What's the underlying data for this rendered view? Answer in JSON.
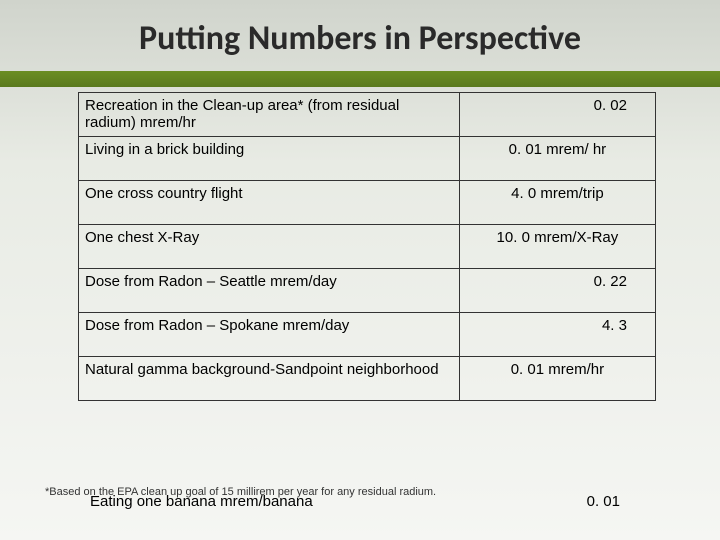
{
  "title": "Putting Numbers in Perspective",
  "table": {
    "rows": [
      {
        "label": "Recreation in the Clean-up area* (from residual radium) mrem/hr",
        "value": "0. 02",
        "align": "right"
      },
      {
        "label": "Living in a brick building",
        "value": "0. 01 mrem/ hr",
        "align": "center"
      },
      {
        "label": "One cross country flight",
        "value": "4. 0 mrem/trip",
        "align": "center"
      },
      {
        "label": "One chest X-Ray",
        "value": "10. 0 mrem/X-Ray",
        "align": "center"
      },
      {
        "label": "Dose from Radon – Seattle mrem/day",
        "value": "0. 22",
        "align": "right"
      },
      {
        "label": "Dose from Radon – Spokane mrem/day",
        "value": "4. 3",
        "align": "right"
      },
      {
        "label": "Natural gamma background-Sandpoint neighborhood",
        "value": "0. 01 mrem/hr",
        "align": "center"
      }
    ],
    "border_color": "#333333",
    "font_size": 15
  },
  "footnote": "*Based on the EPA clean up goal of 15 millirem per year for any residual radium.",
  "overlap": {
    "label": "Eating one banana mrem/banana",
    "value": "0. 01"
  },
  "colors": {
    "title": "#2a2a2a",
    "bar_gradient_top": "#6b8e23",
    "bar_gradient_bottom": "#5a7a1e",
    "bg_top": "#d0d4cc",
    "bg_mid": "#e8ebe4",
    "bg_bottom": "#f5f6f3"
  }
}
